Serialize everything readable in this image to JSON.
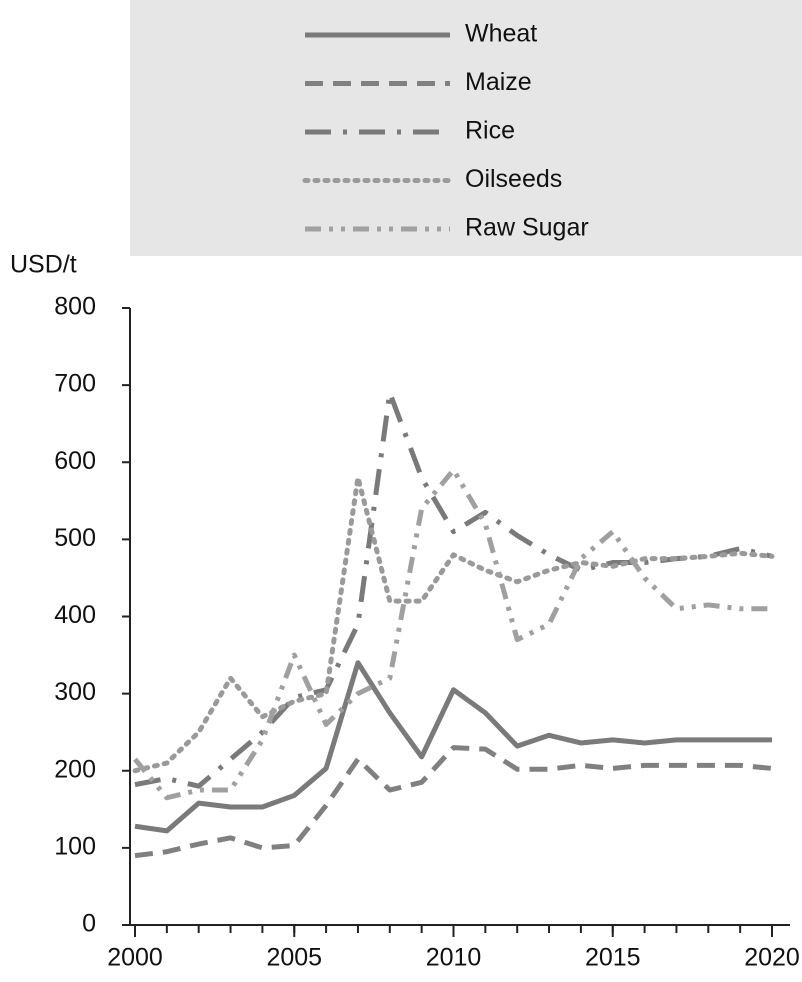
{
  "chart_data": {
    "type": "line",
    "y_label": "USD/t",
    "x": [
      2000,
      2001,
      2002,
      2003,
      2004,
      2005,
      2006,
      2007,
      2008,
      2009,
      2010,
      2011,
      2012,
      2013,
      2014,
      2015,
      2016,
      2017,
      2018,
      2019,
      2020
    ],
    "series": [
      {
        "name": "Wheat",
        "color": "#7a7a7a",
        "style": "solid",
        "values": [
          128,
          122,
          158,
          153,
          153,
          168,
          203,
          340,
          275,
          218,
          305,
          275,
          232,
          246,
          236,
          240,
          236,
          240,
          240,
          240,
          240
        ]
      },
      {
        "name": "Maize",
        "color": "#808080",
        "style": "dashed",
        "values": [
          90,
          95,
          105,
          113,
          100,
          103,
          155,
          215,
          175,
          185,
          230,
          228,
          202,
          202,
          207,
          203,
          207,
          207,
          207,
          207,
          203
        ]
      },
      {
        "name": "Rice",
        "color": "#7a7a7a",
        "style": "dashdot",
        "values": [
          182,
          190,
          180,
          215,
          250,
          295,
          305,
          390,
          690,
          580,
          510,
          535,
          505,
          480,
          460,
          470,
          470,
          475,
          478,
          488,
          478
        ]
      },
      {
        "name": "Oilseeds",
        "color": "#9a9a9a",
        "style": "dotted",
        "values": [
          200,
          210,
          250,
          320,
          270,
          290,
          300,
          580,
          420,
          420,
          480,
          460,
          445,
          460,
          470,
          465,
          475,
          475,
          478,
          482,
          478
        ]
      },
      {
        "name": "Raw Sugar",
        "color": "#a0a0a0",
        "style": "dashdotdot",
        "values": [
          215,
          165,
          175,
          175,
          240,
          350,
          260,
          300,
          320,
          540,
          590,
          520,
          370,
          390,
          475,
          510,
          450,
          410,
          415,
          410,
          410
        ]
      }
    ],
    "xlim": [
      2000,
      2020
    ],
    "xticks": [
      2000,
      2005,
      2010,
      2015,
      2020
    ],
    "ylim": [
      0,
      800
    ],
    "yticks": [
      0,
      100,
      200,
      300,
      400,
      500,
      600,
      700,
      800
    ],
    "legend": "top"
  }
}
